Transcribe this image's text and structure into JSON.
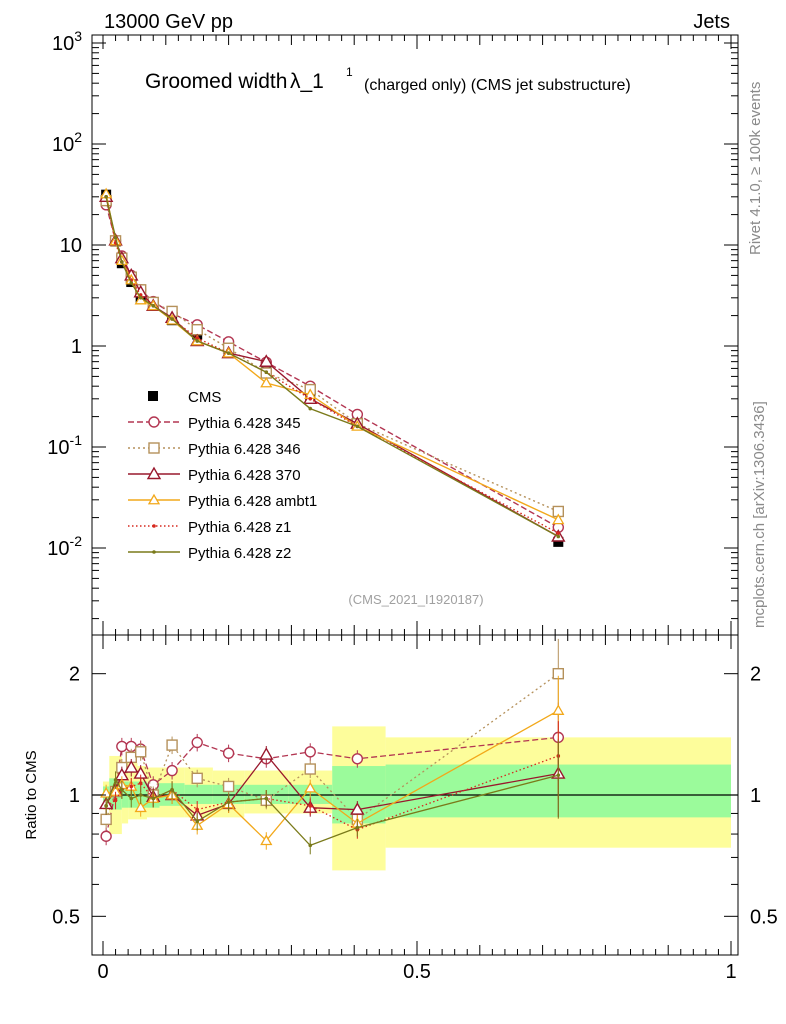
{
  "header": {
    "energy_label": "13000 GeV pp",
    "category_label": "Jets",
    "title_main": "Groomed width",
    "title_symbol": "λ_1",
    "title_sup": "1",
    "title_suffix": "(charged only) (CMS jet substructure)",
    "analysis_id": "(CMS_2021_I1920187)"
  },
  "side_text": {
    "rivet": "Rivet 4.1.0, ≥ 100k events",
    "mcplots": "mcplots.cern.ch [arXiv:1306.3436]"
  },
  "colors": {
    "cms": "#000000",
    "p345": "#b33652",
    "p346": "#b5915b",
    "p370": "#99182d",
    "ambt1": "#f2a81a",
    "z1": "#d6281e",
    "z2": "#7a7a1a",
    "band_stat": "#9bfb9b",
    "band_syst": "#fdfd9b"
  },
  "chart_data": [
    {
      "type": "line",
      "panel": "main",
      "title": "Groomed width λ_1^1 (charged only) (CMS jet substructure)",
      "xlabel": "",
      "ylabel": "",
      "yscale": "log",
      "xlim": [
        0,
        1
      ],
      "ylim": [
        0.001,
        1000
      ],
      "y_tick_labels": [
        "10^-2",
        "10^-1",
        "1",
        "10",
        "10^2",
        "10^3"
      ],
      "x": [
        0.005,
        0.02,
        0.03,
        0.045,
        0.06,
        0.08,
        0.11,
        0.15,
        0.2,
        0.26,
        0.33,
        0.405,
        0.725
      ],
      "series": [
        {
          "name": "CMS",
          "key": "cms",
          "style": "data",
          "values": [
            31.5,
            10.8,
            6.6,
            4.3,
            3.0,
            2.55,
            1.8,
            1.3,
            0.88,
            0.56,
            0.32,
            0.19,
            0.0115
          ]
        },
        {
          "name": "Pythia 6.428 345",
          "key": "p345",
          "style": "dashed",
          "marker": "circle",
          "values": [
            25.0,
            11.0,
            7.8,
            5.0,
            3.6,
            2.75,
            2.1,
            1.62,
            1.1,
            0.69,
            0.4,
            0.21,
            0.016
          ]
        },
        {
          "name": "Pythia 6.428 346",
          "key": "p346",
          "style": "dotted",
          "marker": "square",
          "values": [
            27.5,
            11.0,
            7.4,
            4.8,
            3.6,
            2.7,
            2.2,
            1.45,
            0.95,
            0.54,
            0.37,
            0.17,
            0.023
          ]
        },
        {
          "name": "Pythia 6.428 370",
          "key": "p370",
          "style": "solid",
          "marker": "triangle",
          "values": [
            30.0,
            11.1,
            7.4,
            5.0,
            3.4,
            2.5,
            1.9,
            1.12,
            0.85,
            0.7,
            0.3,
            0.17,
            0.013
          ]
        },
        {
          "name": "Pythia 6.428 ambt1",
          "key": "ambt1",
          "style": "solid",
          "marker": "triangle-small",
          "values": [
            32.0,
            11.0,
            7.0,
            4.5,
            2.85,
            2.5,
            1.8,
            1.12,
            0.85,
            0.43,
            0.33,
            0.16,
            0.019
          ]
        },
        {
          "name": "Pythia 6.428 z1",
          "key": "z1",
          "style": "dotted-red",
          "marker": "dot",
          "values": [
            30.0,
            10.5,
            6.8,
            4.5,
            3.2,
            2.5,
            1.85,
            1.2,
            0.85,
            0.55,
            0.3,
            0.16,
            0.014
          ]
        },
        {
          "name": "Pythia 6.428 z2",
          "key": "z2",
          "style": "solid",
          "marker": "dot",
          "values": [
            30.0,
            11.8,
            6.8,
            4.2,
            3.0,
            2.5,
            1.85,
            1.12,
            0.85,
            0.55,
            0.24,
            0.16,
            0.013
          ]
        }
      ]
    },
    {
      "type": "line",
      "panel": "ratio",
      "ylabel": "Ratio to CMS",
      "yscale": "log",
      "ylim": [
        0.4,
        2.35
      ],
      "y_ticks": [
        0.5,
        1,
        2
      ],
      "y_tick_labels": [
        "0.5",
        "1",
        "2"
      ],
      "xlim": [
        0,
        1
      ],
      "x_ticks": [
        0,
        0.5,
        1
      ],
      "x_tick_labels": [
        "0",
        "0.5",
        "1"
      ],
      "bins": [
        [
          0,
          0.01
        ],
        [
          0.01,
          0.03
        ],
        [
          0.03,
          0.04
        ],
        [
          0.04,
          0.055
        ],
        [
          0.055,
          0.07
        ],
        [
          0.07,
          0.09
        ],
        [
          0.09,
          0.13
        ],
        [
          0.13,
          0.175
        ],
        [
          0.175,
          0.225
        ],
        [
          0.225,
          0.295
        ],
        [
          0.295,
          0.365
        ],
        [
          0.365,
          0.45
        ],
        [
          0.45,
          1.0
        ]
      ],
      "band_stat": [
        [
          0.95,
          1.05
        ],
        [
          0.92,
          1.1
        ],
        [
          0.93,
          1.08
        ],
        [
          0.93,
          1.08
        ],
        [
          0.93,
          1.08
        ],
        [
          0.93,
          1.07
        ],
        [
          0.94,
          1.07
        ],
        [
          0.95,
          1.06
        ],
        [
          0.95,
          1.06
        ],
        [
          0.95,
          1.06
        ],
        [
          0.95,
          1.06
        ],
        [
          0.85,
          1.18
        ],
        [
          0.88,
          1.19
        ]
      ],
      "band_syst": [
        [
          0.92,
          1.08
        ],
        [
          0.8,
          1.25
        ],
        [
          0.85,
          1.2
        ],
        [
          0.87,
          1.2
        ],
        [
          0.87,
          1.18
        ],
        [
          0.88,
          1.17
        ],
        [
          0.88,
          1.17
        ],
        [
          0.88,
          1.17
        ],
        [
          0.88,
          1.15
        ],
        [
          0.9,
          1.15
        ],
        [
          0.9,
          1.15
        ],
        [
          0.65,
          1.48
        ],
        [
          0.74,
          1.39
        ]
      ],
      "series": [
        {
          "name": "Pythia 6.428 345",
          "key": "p345",
          "values": [
            0.79,
            1.02,
            1.32,
            1.32,
            1.3,
            1.06,
            1.15,
            1.35,
            1.27,
            1.23,
            1.28,
            1.23,
            1.39
          ]
        },
        {
          "name": "Pythia 6.428 346",
          "key": "p346",
          "values": [
            0.87,
            1.02,
            1.17,
            1.24,
            1.28,
            1.0,
            1.33,
            1.1,
            1.05,
            0.97,
            1.16,
            0.87,
            2.0
          ]
        },
        {
          "name": "Pythia 6.428 370",
          "key": "p370",
          "values": [
            0.95,
            1.03,
            1.12,
            1.17,
            1.13,
            0.99,
            1.0,
            0.89,
            0.95,
            1.26,
            0.93,
            0.92,
            1.13
          ]
        },
        {
          "name": "Pythia 6.428 ambt1",
          "key": "ambt1",
          "values": [
            1.01,
            1.02,
            1.06,
            1.05,
            0.93,
            0.98,
            1.0,
            0.84,
            0.95,
            0.77,
            1.04,
            0.85,
            1.62
          ]
        },
        {
          "name": "Pythia 6.428 z1",
          "key": "z1",
          "values": [
            0.94,
            0.97,
            1.03,
            1.05,
            1.07,
            0.98,
            1.03,
            0.92,
            0.96,
            0.98,
            0.94,
            0.82,
            1.25
          ]
        },
        {
          "name": "Pythia 6.428 z2",
          "key": "z2",
          "values": [
            0.94,
            1.09,
            1.03,
            0.98,
            1.0,
            0.98,
            1.03,
            0.86,
            0.96,
            0.98,
            0.75,
            0.83,
            1.12
          ]
        }
      ]
    }
  ]
}
